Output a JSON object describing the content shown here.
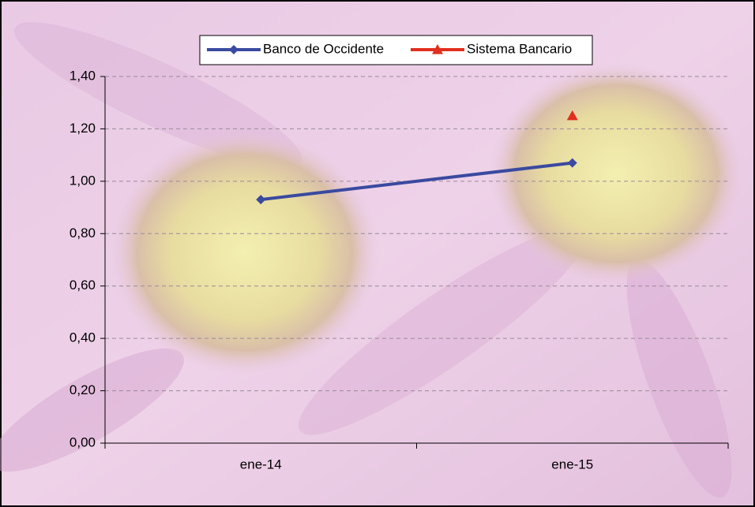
{
  "chart_data": {
    "type": "line",
    "categories": [
      "ene-14",
      "ene-15"
    ],
    "series": [
      {
        "name": "Banco de Occidente",
        "color": "#3a4aa0",
        "marker": "diamond",
        "values": [
          0.93,
          1.07
        ]
      },
      {
        "name": "Sistema Bancario",
        "color": "#e0301e",
        "marker": "triangle",
        "values": [
          null,
          1.25
        ]
      }
    ],
    "ylim": [
      0,
      1.4
    ],
    "yticks": [
      {
        "value": 0,
        "label": "0,00"
      },
      {
        "value": 0.2,
        "label": "0,20"
      },
      {
        "value": 0.4,
        "label": "0,40"
      },
      {
        "value": 0.6,
        "label": "0,60"
      },
      {
        "value": 0.8,
        "label": "0,80"
      },
      {
        "value": 1.0,
        "label": "1,00"
      },
      {
        "value": 1.2,
        "label": "1,20"
      },
      {
        "value": 1.4,
        "label": "1,40"
      }
    ],
    "grid": true,
    "legend": "top"
  }
}
